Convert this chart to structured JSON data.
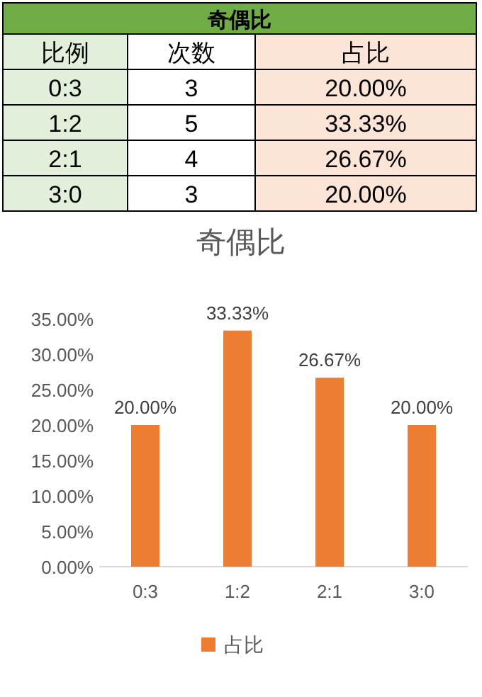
{
  "chart_data": [
    {
      "type": "other",
      "title": "奇偶比",
      "colors": [
        "#e2efda",
        "#ffffff",
        "#fce4d6"
      ],
      "annotations": [
        "比例",
        "次数",
        "占比",
        "0:3",
        "3",
        "20.00%",
        "1:2",
        "5",
        "33.33%",
        "2:1",
        "4",
        "26.67%",
        "3:0",
        "3",
        "20.00%"
      ]
    },
    {
      "type": "bar",
      "title": "奇偶比",
      "categories": [
        "0:3",
        "1:2",
        "2:1",
        "3:0"
      ],
      "series": [
        {
          "name": "占比",
          "color": "#ed7d31",
          "values": [
            20,
            33.33,
            26.67,
            20
          ]
        }
      ],
      "value_labels": [
        "20.00%",
        "33.33%",
        "26.67%",
        "20.00%"
      ],
      "ylim": [
        0,
        35
      ],
      "yticks": [
        {
          "value": 0,
          "label": "0.00%"
        },
        {
          "value": 5,
          "label": "5.00%"
        },
        {
          "value": 10,
          "label": "10.00%"
        },
        {
          "value": 15,
          "label": "15.00%"
        },
        {
          "value": 20,
          "label": "20.00%"
        },
        {
          "value": 25,
          "label": "25.00%"
        },
        {
          "value": 30,
          "label": "30.00%"
        },
        {
          "value": 35,
          "label": "35.00%"
        }
      ],
      "legend": "bottom"
    }
  ]
}
